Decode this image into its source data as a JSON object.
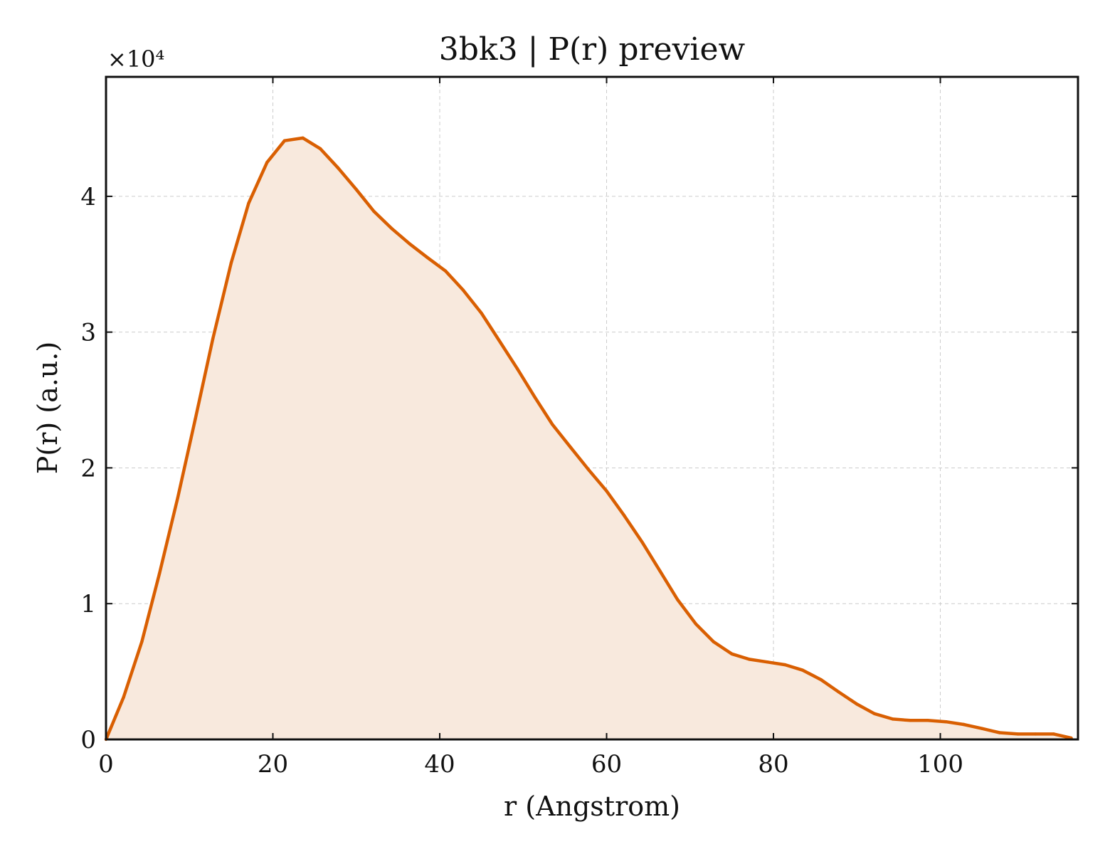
{
  "chart_data": {
    "type": "area",
    "title": "3bk3 | P(r) preview",
    "xlabel": "r (Angstrom)",
    "ylabel": "P(r) (a.u.)",
    "y_multiplier": "×10⁴",
    "xlim": [
      0,
      116.5
    ],
    "ylim": [
      0,
      4.88
    ],
    "xticks": [
      0,
      20,
      40,
      60,
      80,
      100
    ],
    "yticks": [
      0,
      1,
      2,
      3,
      4
    ],
    "grid": true,
    "line_color": "#d95f02",
    "fill_color": "#f8e9dd",
    "series": [
      {
        "x": [
          0,
          2.1,
          4.3,
          6.4,
          8.6,
          10.7,
          12.8,
          15.0,
          17.1,
          19.3,
          21.4,
          23.6,
          25.7,
          27.8,
          30.0,
          32.1,
          34.3,
          36.4,
          38.5,
          40.7,
          42.8,
          45.0,
          47.1,
          49.3,
          51.4,
          53.5,
          55.7,
          57.8,
          60.0,
          62.1,
          64.3,
          66.4,
          68.5,
          70.7,
          72.8,
          75.0,
          77.1,
          79.3,
          81.4,
          83.5,
          85.7,
          87.8,
          90.0,
          92.1,
          94.3,
          96.4,
          98.5,
          100.7,
          102.8,
          105.0,
          107.1,
          109.3,
          111.4,
          113.6,
          115.7
        ],
        "y": [
          0,
          0.31,
          0.72,
          1.22,
          1.78,
          2.36,
          2.95,
          3.51,
          3.95,
          4.25,
          4.41,
          4.43,
          4.35,
          4.21,
          4.05,
          3.89,
          3.76,
          3.65,
          3.55,
          3.45,
          3.31,
          3.14,
          2.94,
          2.73,
          2.52,
          2.32,
          2.15,
          1.99,
          1.83,
          1.65,
          1.45,
          1.24,
          1.03,
          0.85,
          0.72,
          0.63,
          0.59,
          0.57,
          0.55,
          0.51,
          0.44,
          0.35,
          0.26,
          0.19,
          0.15,
          0.14,
          0.14,
          0.13,
          0.11,
          0.08,
          0.05,
          0.04,
          0.04,
          0.04,
          0.01
        ]
      }
    ]
  }
}
